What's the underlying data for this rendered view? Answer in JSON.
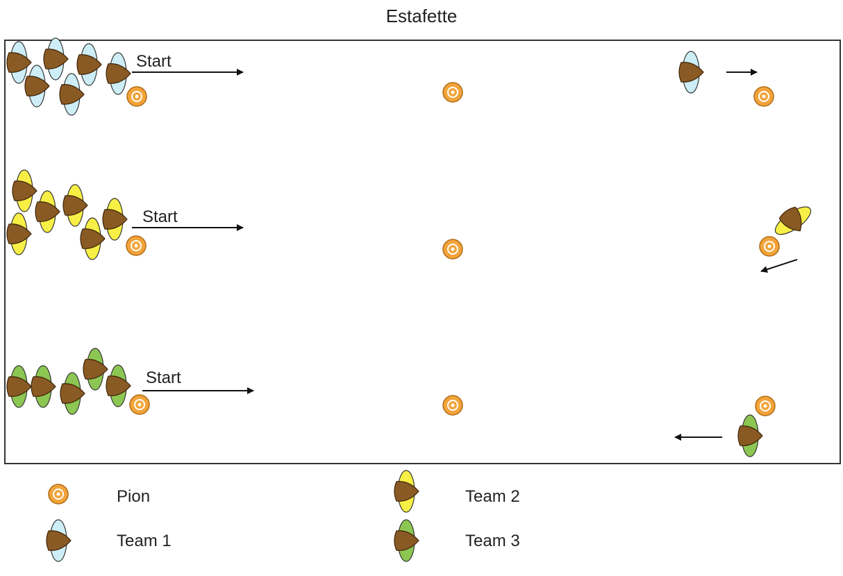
{
  "title": "Estafette",
  "start_label": "Start",
  "legend": {
    "pion": "Pion",
    "team1": "Team 1",
    "team2": "Team 2",
    "team3": "Team 3"
  },
  "colors": {
    "team1": "#cdeef6",
    "team2": "#f7ef45",
    "team3": "#8cc653",
    "player_head": "#8a5a24",
    "cone": "#f2a43a",
    "field_border": "#333333",
    "arrow": "#111111"
  },
  "icons": {
    "cone": "pion-cone-icon",
    "player": "player-icon"
  }
}
